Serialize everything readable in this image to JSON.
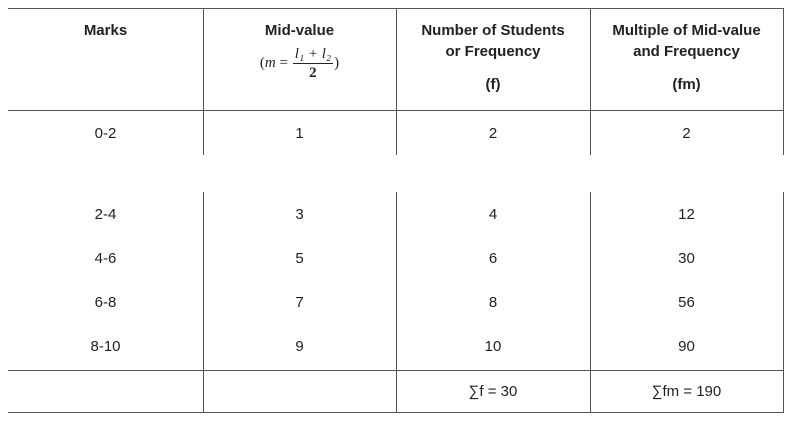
{
  "table": {
    "headers": {
      "marks": "Marks",
      "midvalue": "Mid-value",
      "formula_prefix": "(",
      "formula_var": "m",
      "formula_eq": "=",
      "formula_num": "l₁ + l₂",
      "formula_den": "2",
      "formula_suffix": ")",
      "freq_line1": "Number of Students",
      "freq_line2": "or Frequency",
      "freq_symbol": "(f)",
      "fm_line1": "Multiple of Mid-value",
      "fm_line2": "and Frequency",
      "fm_symbol": "(fm)"
    },
    "first_row": {
      "marks": "0-2",
      "mid": "1",
      "f": "2",
      "fm": "2"
    },
    "rows": [
      {
        "marks": "2-4",
        "mid": "3",
        "f": "4",
        "fm": "12"
      },
      {
        "marks": "4-6",
        "mid": "5",
        "f": "6",
        "fm": "30"
      },
      {
        "marks": "6-8",
        "mid": "7",
        "f": "8",
        "fm": "56"
      },
      {
        "marks": "8-10",
        "mid": "9",
        "f": "10",
        "fm": "90"
      }
    ],
    "totals": {
      "f": "∑f = 30",
      "fm": "∑fm = 190"
    }
  }
}
